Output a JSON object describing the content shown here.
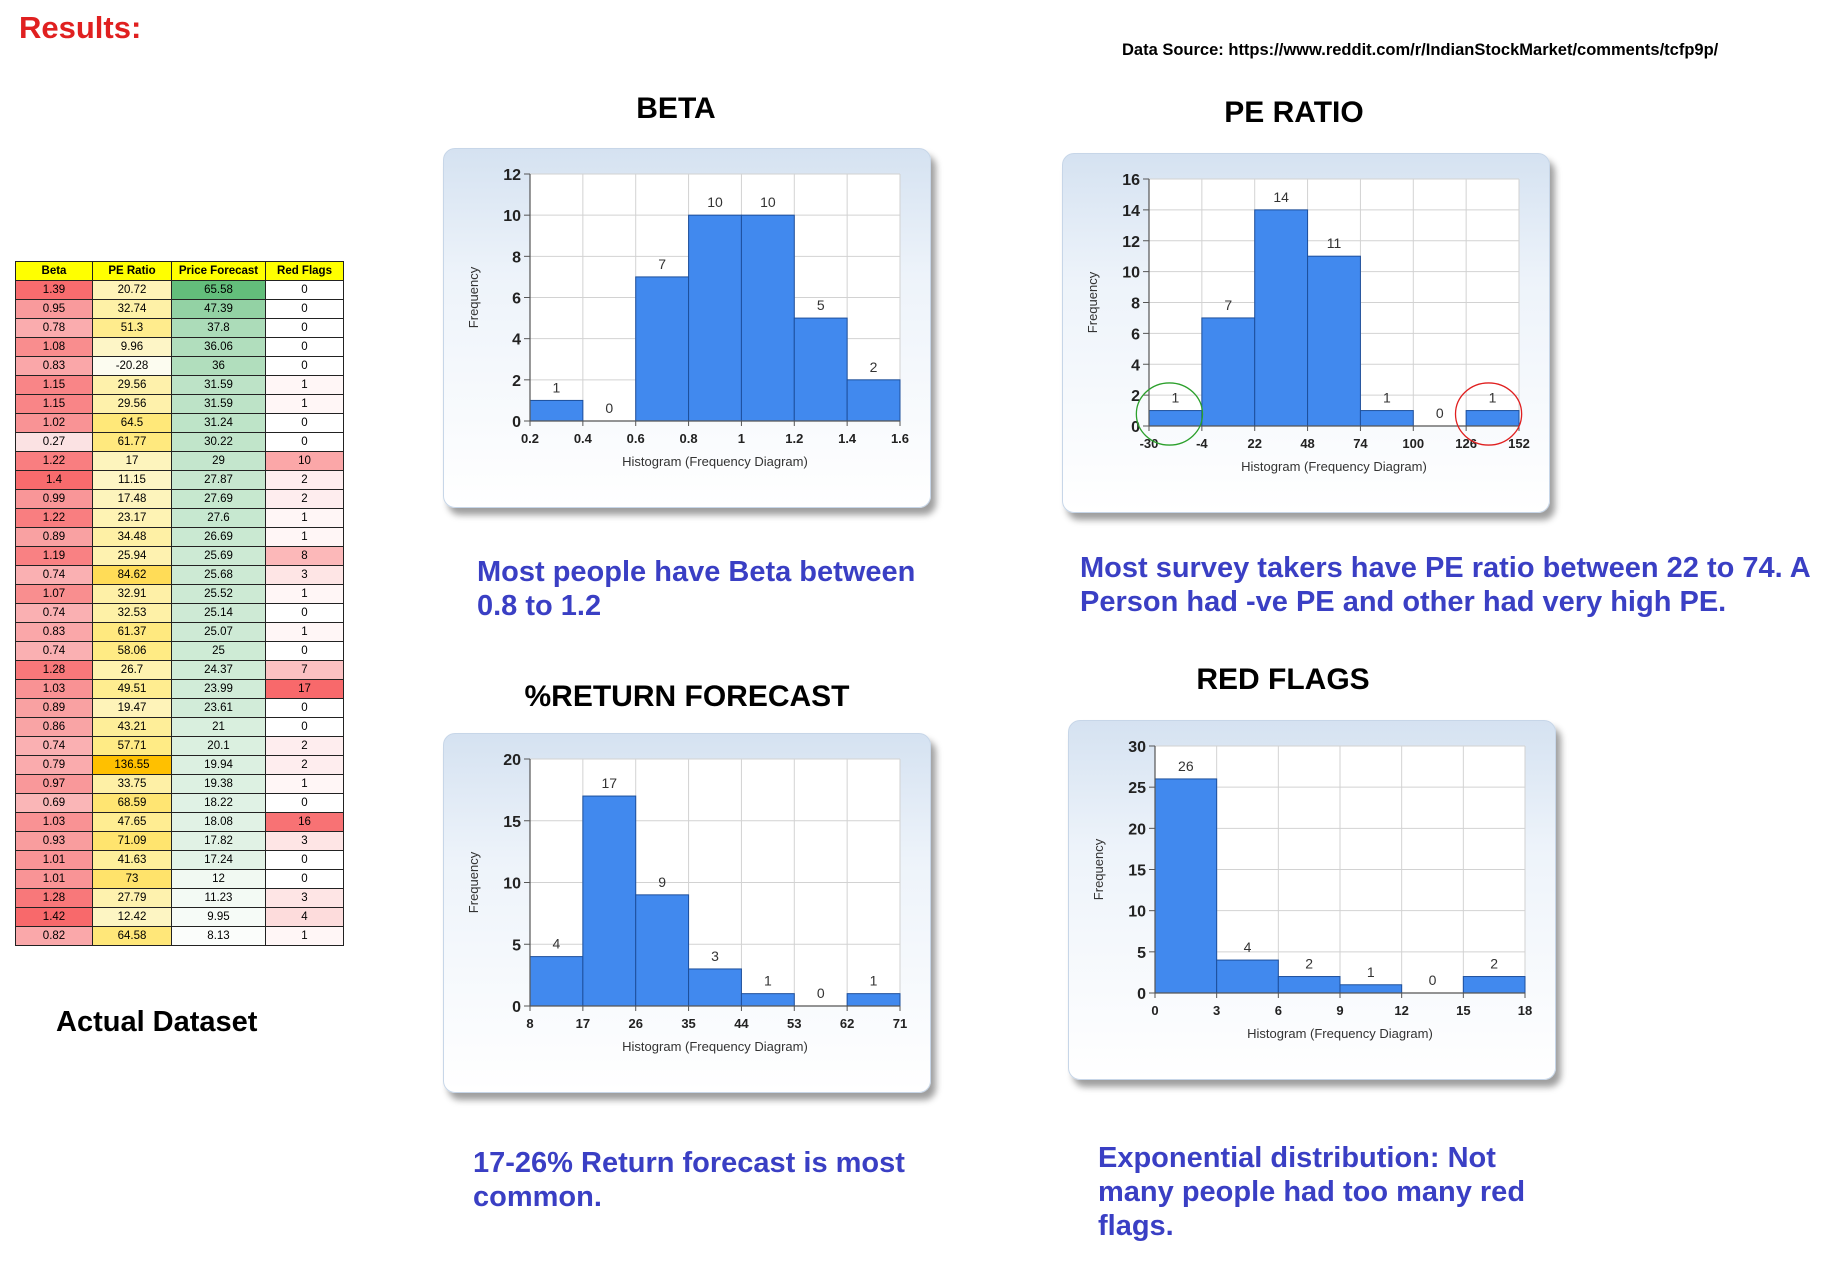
{
  "header": {
    "results_label": "Results:",
    "source_label": "Data Source: https://www.reddit.com/r/IndianStockMarket/comments/tcfp9p/"
  },
  "dataset": {
    "label": "Actual Dataset",
    "columns": [
      "Beta",
      "PE Ratio",
      "Price Forecast",
      "Red Flags"
    ],
    "rows": [
      [
        "1.39",
        "20.72",
        "65.58",
        "0"
      ],
      [
        "0.95",
        "32.74",
        "47.39",
        "0"
      ],
      [
        "0.78",
        "51.3",
        "37.8",
        "0"
      ],
      [
        "1.08",
        "9.96",
        "36.06",
        "0"
      ],
      [
        "0.83",
        "-20.28",
        "36",
        "0"
      ],
      [
        "1.15",
        "29.56",
        "31.59",
        "1"
      ],
      [
        "1.15",
        "29.56",
        "31.59",
        "1"
      ],
      [
        "1.02",
        "64.5",
        "31.24",
        "0"
      ],
      [
        "0.27",
        "61.77",
        "30.22",
        "0"
      ],
      [
        "1.22",
        "17",
        "29",
        "10"
      ],
      [
        "1.4",
        "11.15",
        "27.87",
        "2"
      ],
      [
        "0.99",
        "17.48",
        "27.69",
        "2"
      ],
      [
        "1.22",
        "23.17",
        "27.6",
        "1"
      ],
      [
        "0.89",
        "34.48",
        "26.69",
        "1"
      ],
      [
        "1.19",
        "25.94",
        "25.69",
        "8"
      ],
      [
        "0.74",
        "84.62",
        "25.68",
        "3"
      ],
      [
        "1.07",
        "32.91",
        "25.52",
        "1"
      ],
      [
        "0.74",
        "32.53",
        "25.14",
        "0"
      ],
      [
        "0.83",
        "61.37",
        "25.07",
        "1"
      ],
      [
        "0.74",
        "58.06",
        "25",
        "0"
      ],
      [
        "1.28",
        "26.7",
        "24.37",
        "7"
      ],
      [
        "1.03",
        "49.51",
        "23.99",
        "17"
      ],
      [
        "0.89",
        "19.47",
        "23.61",
        "0"
      ],
      [
        "0.86",
        "43.21",
        "21",
        "0"
      ],
      [
        "0.74",
        "57.71",
        "20.1",
        "2"
      ],
      [
        "0.79",
        "136.55",
        "19.94",
        "2"
      ],
      [
        "0.97",
        "33.75",
        "19.38",
        "1"
      ],
      [
        "0.69",
        "68.59",
        "18.22",
        "0"
      ],
      [
        "1.03",
        "47.65",
        "18.08",
        "16"
      ],
      [
        "0.93",
        "71.09",
        "17.82",
        "3"
      ],
      [
        "1.01",
        "41.63",
        "17.24",
        "0"
      ],
      [
        "1.01",
        "73",
        "12",
        "0"
      ],
      [
        "1.28",
        "27.79",
        "11.23",
        "3"
      ],
      [
        "1.42",
        "12.42",
        "9.95",
        "4"
      ],
      [
        "0.82",
        "64.58",
        "8.13",
        "1"
      ]
    ]
  },
  "charts": {
    "beta": {
      "title": "BETA",
      "caption": "Most people have Beta between 0.8 to 1.2"
    },
    "pe": {
      "title": "PE RATIO",
      "caption": "Most survey takers have PE ratio between 22 to 74. A Person had -ve PE and other had very high PE."
    },
    "ret": {
      "title": "%RETURN FORECAST",
      "caption": "17-26% Return forecast is most common."
    },
    "flags": {
      "title": "RED FLAGS",
      "caption": "Exponential distribution: Not many people had too many red flags."
    }
  },
  "colors": {
    "bar": "#4189ee",
    "heat_red": "#f8696b",
    "heat_yellow": "#ffeb84",
    "heat_green": "#63be7b",
    "title_red": "#e02020",
    "caption_blue": "#3a3fc4",
    "highlight_green_circle": "#2ca02c",
    "highlight_red_circle": "#e02020"
  },
  "chart_data": [
    {
      "id": "beta",
      "type": "bar",
      "title": "BETA",
      "xlabel": "Histogram (Frequency Diagram)",
      "ylabel": "Frequency",
      "x_ticks": [
        "0.2",
        "0.4",
        "0.6",
        "0.8",
        "1",
        "1.2",
        "1.4",
        "1.6"
      ],
      "values": [
        1,
        0,
        7,
        10,
        10,
        5,
        2
      ],
      "ylim": [
        0,
        12
      ],
      "y_ticks": [
        0,
        2,
        4,
        6,
        8,
        10,
        12
      ],
      "grid": true
    },
    {
      "id": "pe",
      "type": "bar",
      "title": "PE RATIO",
      "xlabel": "Histogram (Frequency Diagram)",
      "ylabel": "Frequency",
      "x_ticks": [
        "-30",
        "-4",
        "22",
        "48",
        "74",
        "100",
        "126",
        "152"
      ],
      "values": [
        1,
        7,
        14,
        11,
        1,
        0,
        1
      ],
      "ylim": [
        0,
        16
      ],
      "y_ticks": [
        0,
        2,
        4,
        6,
        8,
        10,
        12,
        14,
        16
      ],
      "grid": true,
      "highlights": [
        {
          "bin": 0,
          "color": "#2ca02c"
        },
        {
          "bin": 6,
          "color": "#e02020"
        }
      ]
    },
    {
      "id": "ret",
      "type": "bar",
      "title": "%RETURN FORECAST",
      "xlabel": "Histogram (Frequency Diagram)",
      "ylabel": "Frequency",
      "x_ticks": [
        "8",
        "17",
        "26",
        "35",
        "44",
        "53",
        "62",
        "71"
      ],
      "values": [
        4,
        17,
        9,
        3,
        1,
        0,
        1
      ],
      "ylim": [
        0,
        20
      ],
      "y_ticks": [
        0,
        5,
        10,
        15,
        20
      ],
      "grid": true
    },
    {
      "id": "flags",
      "type": "bar",
      "title": "RED FLAGS",
      "xlabel": "Histogram (Frequency Diagram)",
      "ylabel": "Frequency",
      "x_ticks": [
        "0",
        "3",
        "6",
        "9",
        "12",
        "15",
        "18"
      ],
      "values": [
        26,
        4,
        2,
        1,
        0,
        2
      ],
      "ylim": [
        0,
        30
      ],
      "y_ticks": [
        0,
        5,
        10,
        15,
        20,
        25,
        30
      ],
      "grid": true
    }
  ]
}
